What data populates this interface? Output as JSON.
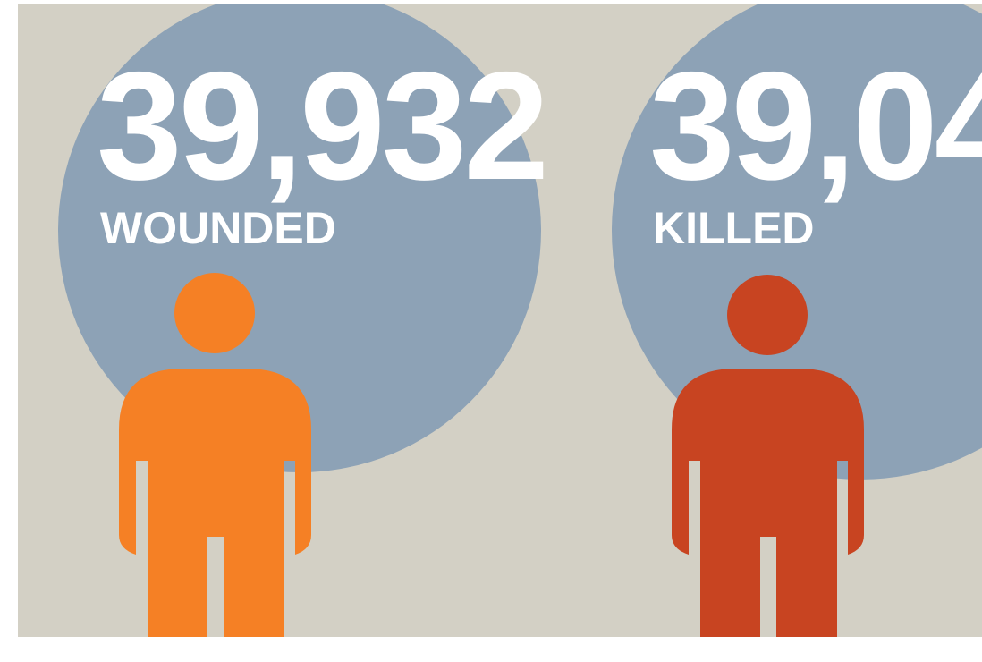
{
  "items": [
    {
      "number": "39,932",
      "label": "WOUNDED"
    },
    {
      "number": "39,04",
      "label": "KILLED"
    }
  ]
}
